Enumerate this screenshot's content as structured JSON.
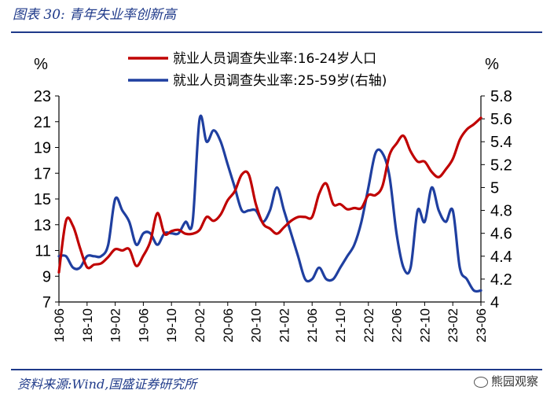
{
  "header": {
    "title": "图表 30:  青年失业率创新高"
  },
  "footer": {
    "source": "资料来源:Wind,国盛证券研究所",
    "watermark": "熊园观察"
  },
  "chart_data": {
    "type": "line",
    "left_axis_unit": "%",
    "right_axis_unit": "%",
    "left_ylim": [
      7,
      23
    ],
    "left_yticks": [
      7,
      9,
      11,
      13,
      15,
      17,
      19,
      21,
      23
    ],
    "right_ylim": [
      4.0,
      5.8
    ],
    "right_yticks": [
      "4",
      "4.2",
      "4.4",
      "4.6",
      "4.8",
      "5",
      "5.2",
      "5.4",
      "5.6",
      "5.8"
    ],
    "x_tick_labels": [
      "18-06",
      "18-10",
      "19-02",
      "19-06",
      "19-10",
      "20-02",
      "20-06",
      "20-10",
      "21-02",
      "21-06",
      "21-10",
      "22-02",
      "22-06",
      "22-10",
      "23-02",
      "23-06"
    ],
    "x": [
      "18-06",
      "18-07",
      "18-08",
      "18-09",
      "18-10",
      "18-11",
      "18-12",
      "19-01",
      "19-02",
      "19-03",
      "19-04",
      "19-05",
      "19-06",
      "19-07",
      "19-08",
      "19-09",
      "19-10",
      "19-11",
      "19-12",
      "20-01",
      "20-02",
      "20-03",
      "20-04",
      "20-05",
      "20-06",
      "20-07",
      "20-08",
      "20-09",
      "20-10",
      "20-11",
      "20-12",
      "21-01",
      "21-02",
      "21-03",
      "21-04",
      "21-05",
      "21-06",
      "21-07",
      "21-08",
      "21-09",
      "21-10",
      "21-11",
      "21-12",
      "22-01",
      "22-02",
      "22-03",
      "22-04",
      "22-05",
      "22-06",
      "22-07",
      "22-08",
      "22-09",
      "22-10",
      "22-11",
      "22-12",
      "23-01",
      "23-02",
      "23-03",
      "23-04",
      "23-05",
      "23-06"
    ],
    "series": [
      {
        "name": "就业人员调查失业率:16-24岁人口",
        "axis": "left",
        "color": "#c00000",
        "values": [
          9.3,
          13.3,
          12.9,
          11.2,
          9.7,
          9.9,
          10.0,
          10.5,
          11.1,
          11.0,
          11.1,
          9.8,
          10.6,
          11.7,
          13.9,
          12.3,
          12.5,
          12.6,
          12.3,
          12.3,
          12.6,
          13.6,
          13.3,
          13.8,
          14.9,
          15.6,
          16.9,
          16.9,
          14.6,
          13.1,
          12.7,
          12.3,
          12.8,
          13.3,
          13.6,
          13.6,
          13.6,
          15.4,
          16.2,
          14.6,
          14.6,
          14.2,
          14.3,
          14.3,
          15.3,
          15.3,
          16.0,
          18.4,
          19.3,
          19.9,
          18.7,
          17.9,
          17.9,
          17.1,
          16.7,
          17.3,
          18.1,
          19.6,
          20.4,
          20.8,
          21.3
        ]
      },
      {
        "name": "就业人员调查失业率:25-59岁(右轴)",
        "axis": "right",
        "color": "#1f3fa0",
        "values": [
          4.4,
          4.4,
          4.3,
          4.3,
          4.4,
          4.4,
          4.4,
          4.5,
          4.9,
          4.8,
          4.7,
          4.5,
          4.6,
          4.6,
          4.5,
          4.6,
          4.6,
          4.6,
          4.7,
          4.7,
          5.6,
          5.4,
          5.5,
          5.4,
          5.2,
          5.0,
          4.8,
          4.8,
          4.8,
          4.7,
          4.8,
          5.0,
          4.8,
          4.6,
          4.4,
          4.2,
          4.2,
          4.3,
          4.2,
          4.2,
          4.3,
          4.4,
          4.5,
          4.7,
          5.0,
          5.3,
          5.3,
          5.1,
          4.6,
          4.3,
          4.3,
          4.8,
          4.7,
          5.0,
          4.8,
          4.7,
          4.8,
          4.3,
          4.2,
          4.1,
          4.1
        ]
      }
    ],
    "legend_position": "top"
  }
}
